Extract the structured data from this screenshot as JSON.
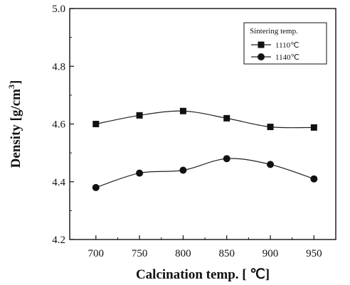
{
  "chart_data": {
    "type": "line",
    "xlabel": "Calcination temp. [ ℃]",
    "ylabel": "Density [g/cm",
    "ylabel_superscript": "3",
    "ylabel_close": "]",
    "x": [
      700,
      750,
      800,
      850,
      900,
      950
    ],
    "xlim": [
      670,
      975
    ],
    "ylim": [
      4.2,
      5.0
    ],
    "x_ticks": [
      "700",
      "750",
      "800",
      "850",
      "900",
      "950"
    ],
    "y_ticks": [
      "4.2",
      "4.4",
      "4.6",
      "4.8",
      "5.0"
    ],
    "grid": false,
    "legend": {
      "placement": "top-right",
      "title": "Sintering temp."
    },
    "series": [
      {
        "name": "1110℃",
        "marker": "square",
        "values": [
          4.6,
          4.63,
          4.645,
          4.62,
          4.59,
          4.588
        ]
      },
      {
        "name": "1140℃",
        "marker": "circle",
        "values": [
          4.38,
          4.43,
          4.44,
          4.48,
          4.46,
          4.41
        ]
      }
    ],
    "colors": {
      "line": "#222222",
      "marker": "#111111",
      "axis": "#111111"
    }
  }
}
